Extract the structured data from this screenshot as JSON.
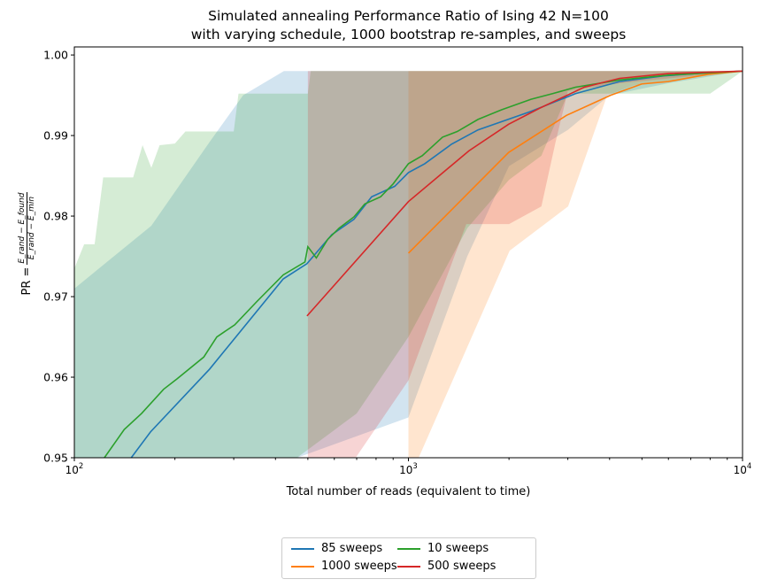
{
  "chart_data": {
    "type": "line",
    "title": [
      "Simulated annealing Performance Ratio of Ising 42 N=100",
      "with varying schedule, 1000 bootstrap re-samples, and sweeps"
    ],
    "xlabel": "Total number of reads (equivalent to time)",
    "ylabel": {
      "prefix": "PR =",
      "numerator": "E_rand − E_found",
      "denominator": "E_rand − E_min"
    },
    "xscale": "log",
    "xlim": [
      100,
      10000
    ],
    "ylim": [
      0.95,
      1.001
    ],
    "xticks": [
      {
        "base": "10",
        "exp": "2",
        "value": 100
      },
      {
        "base": "10",
        "exp": "3",
        "value": 1000
      },
      {
        "base": "10",
        "exp": "4",
        "value": 10000
      }
    ],
    "yticks": [
      "0.95",
      "0.96",
      "0.97",
      "0.98",
      "0.99",
      "1.00"
    ],
    "grid": false,
    "legend_placement": "bottom-center",
    "series": [
      {
        "name": "85 sweeps",
        "color": "#1f77b4",
        "x": [
          148,
          169,
          254,
          422,
          497,
          590,
          687,
          776,
          910,
          1000,
          1119,
          1343,
          1615,
          2328,
          3162,
          4285,
          5807,
          7880,
          10000
        ],
        "y": [
          0.95,
          0.9532,
          0.961,
          0.9722,
          0.9741,
          0.9777,
          0.9796,
          0.9824,
          0.9837,
          0.9854,
          0.9865,
          0.9889,
          0.9907,
          0.993,
          0.9952,
          0.9967,
          0.9974,
          0.9978,
          0.998
        ],
        "band_x": [
          100,
          170,
          254,
          320,
          424,
          10000
        ],
        "band_upper": [
          0.971,
          0.9788,
          0.9892,
          0.995,
          0.998,
          0.998
        ],
        "band_lower_x": [
          100,
          1000,
          1500,
          2000,
          3000,
          4000,
          6000,
          10000
        ],
        "band_lower": [
          0.94,
          0.955,
          0.975,
          0.9862,
          0.9907,
          0.995,
          0.9965,
          0.998
        ]
      },
      {
        "name": "1000 sweeps",
        "color": "#ff7f0e",
        "x": [
          1000,
          1995,
          2972,
          4027,
          4990,
          6000,
          7880,
          10000
        ],
        "y": [
          0.9754,
          0.9879,
          0.9925,
          0.995,
          0.9964,
          0.9967,
          0.9976,
          0.998
        ],
        "band_x": [
          1000,
          10000
        ],
        "band_upper": [
          0.998,
          0.998
        ],
        "band_lower_x": [
          1000,
          1073,
          2009,
          3006,
          3935,
          4700,
          10000
        ],
        "band_lower": [
          0.94,
          0.95,
          0.9757,
          0.9812,
          0.995,
          0.9962,
          0.998
        ]
      },
      {
        "name": "10 sweeps",
        "color": "#2ca02c",
        "x": [
          123,
          141,
          159,
          185,
          203,
          244,
          267,
          302,
          352,
          422,
          490,
          500,
          530,
          573,
          620,
          687,
          740,
          826,
          900,
          1000,
          1100,
          1265,
          1400,
          1615,
          1900,
          2328,
          2700,
          3162,
          4285,
          6000,
          10000
        ],
        "y": [
          0.95,
          0.9535,
          0.9555,
          0.9585,
          0.9598,
          0.9625,
          0.965,
          0.9665,
          0.9694,
          0.9727,
          0.9743,
          0.9762,
          0.9748,
          0.9771,
          0.9785,
          0.9799,
          0.9815,
          0.9824,
          0.984,
          0.9865,
          0.9875,
          0.9898,
          0.9905,
          0.992,
          0.9932,
          0.9945,
          0.9952,
          0.996,
          0.9969,
          0.9975,
          0.998
        ],
        "band_x": [
          100,
          107,
          115,
          122,
          150,
          160,
          170,
          180,
          200,
          215,
          300,
          310,
          500,
          510,
          10000
        ],
        "band_upper": [
          0.9735,
          0.9765,
          0.9765,
          0.9848,
          0.9848,
          0.9888,
          0.986,
          0.9888,
          0.989,
          0.9905,
          0.9905,
          0.9952,
          0.9952,
          0.998,
          0.998
        ],
        "band_lower_x": [
          100,
          430,
          500,
          700,
          1000,
          1500,
          2000,
          2500,
          3000,
          8000,
          10000
        ],
        "band_lower": [
          0.94,
          0.949,
          0.951,
          0.9555,
          0.965,
          0.9785,
          0.9845,
          0.9875,
          0.9952,
          0.9952,
          0.998
        ]
      },
      {
        "name": "500 sweeps",
        "color": "#d62728",
        "x": [
          497,
          1000,
          1517,
          1995,
          2473,
          3358,
          4285,
          6000,
          10000
        ],
        "y": [
          0.9676,
          0.9818,
          0.9881,
          0.9914,
          0.9934,
          0.996,
          0.9971,
          0.9977,
          0.998
        ],
        "band_x": [
          500,
          10000
        ],
        "band_upper": [
          0.998,
          0.998
        ],
        "band_lower_x": [
          500,
          695,
          1000,
          1490,
          2000,
          2500,
          2757,
          3000,
          4300,
          10000
        ],
        "band_lower": [
          0.94,
          0.95,
          0.9596,
          0.979,
          0.979,
          0.9812,
          0.9892,
          0.9955,
          0.9965,
          0.998
        ]
      }
    ]
  }
}
